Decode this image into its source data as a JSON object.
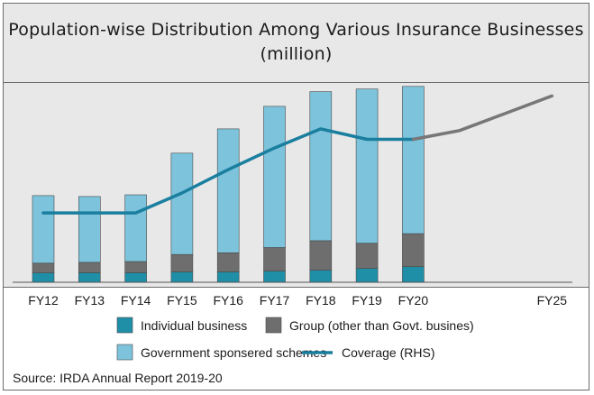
{
  "chart_data": {
    "type": "bar",
    "title": "Population-wise Distribution Among Various Insurance Businesses (million)",
    "categories": [
      "FY12",
      "FY13",
      "FY14",
      "FY15",
      "FY16",
      "FY17",
      "FY18",
      "FY19",
      "FY20",
      "",
      "",
      "FY25"
    ],
    "stacked": true,
    "series": [
      {
        "name": "Individual business",
        "type": "bar",
        "color": "#1f8fa8",
        "values": [
          11,
          11,
          11,
          12,
          12,
          13,
          14,
          16,
          18,
          null,
          null,
          null
        ]
      },
      {
        "name": "Group (other than Govt. busines)",
        "type": "bar",
        "color": "#6e6e6e",
        "values": [
          11,
          12,
          13,
          20,
          22,
          27,
          34,
          29,
          38,
          null,
          null,
          null
        ]
      },
      {
        "name": "Government sponsered schemes",
        "type": "bar",
        "color": "#7cc3db",
        "values": [
          78,
          76,
          77,
          117,
          143,
          163,
          172,
          178,
          170,
          null,
          null,
          null
        ]
      },
      {
        "name": "Coverage (RHS)",
        "type": "line",
        "color": "#1a7f9f",
        "values": [
          80,
          80,
          80,
          103,
          130,
          155,
          177,
          165,
          165,
          null,
          null,
          null
        ]
      },
      {
        "name": "",
        "type": "line",
        "color": "#777777",
        "role": "projection",
        "values": [
          null,
          null,
          null,
          null,
          null,
          null,
          null,
          null,
          165,
          175,
          195,
          215
        ]
      }
    ],
    "ylim": [
      0,
      230
    ],
    "grid": false,
    "legend_position": "bottom",
    "source": "Source: IRDA Annual Report 2019-20"
  },
  "colors": {
    "background": "#e8e8e8",
    "border": "#6b6b6b",
    "axis": "#555555"
  }
}
